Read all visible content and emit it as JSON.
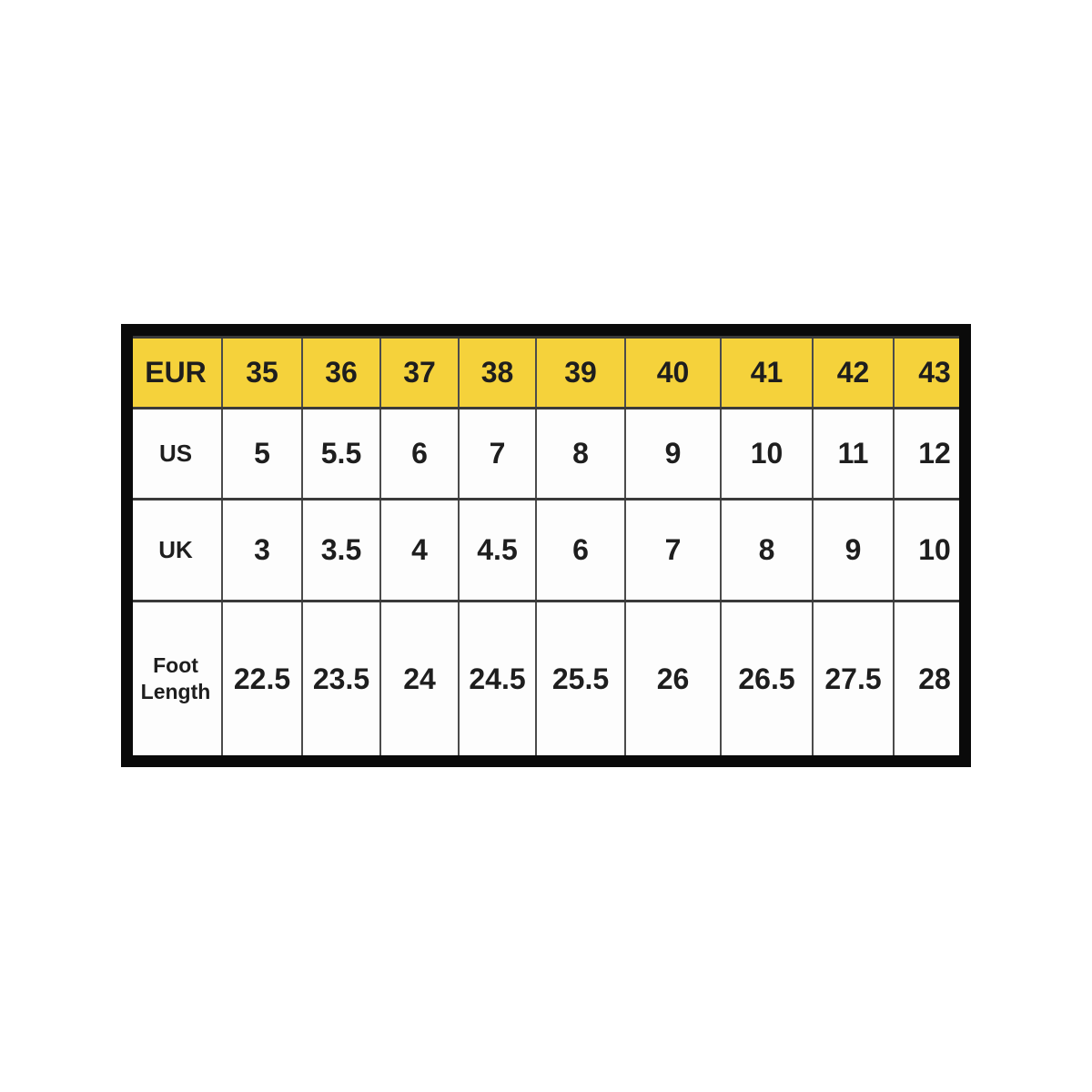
{
  "chart_data": {
    "type": "table",
    "header_label": "EUR",
    "categories": [
      "35",
      "36",
      "37",
      "38",
      "39",
      "40",
      "41",
      "42",
      "43"
    ],
    "rows": [
      {
        "label": "US",
        "values": [
          "5",
          "5.5",
          "6",
          "7",
          "8",
          "9",
          "10",
          "11",
          "12"
        ]
      },
      {
        "label": "UK",
        "values": [
          "3",
          "3.5",
          "4",
          "4.5",
          "6",
          "7",
          "8",
          "9",
          "10"
        ]
      },
      {
        "label": "Foot Length",
        "values": [
          "22.5",
          "23.5",
          "24",
          "24.5",
          "25.5",
          "26",
          "26.5",
          "27.5",
          "28"
        ]
      }
    ],
    "layout_hints": {
      "header_position": "top",
      "label_column_position": "left",
      "last_column_clipped": true,
      "grid": "on"
    }
  },
  "colors": {
    "header_bg": "#f5d23b",
    "table_text": "#1e1e1e",
    "frame": "#0a0a0a",
    "grid_vertical": "#4b4b4b",
    "grid_horizontal": "#3a3a3a",
    "page_bg": "#ffffff"
  }
}
